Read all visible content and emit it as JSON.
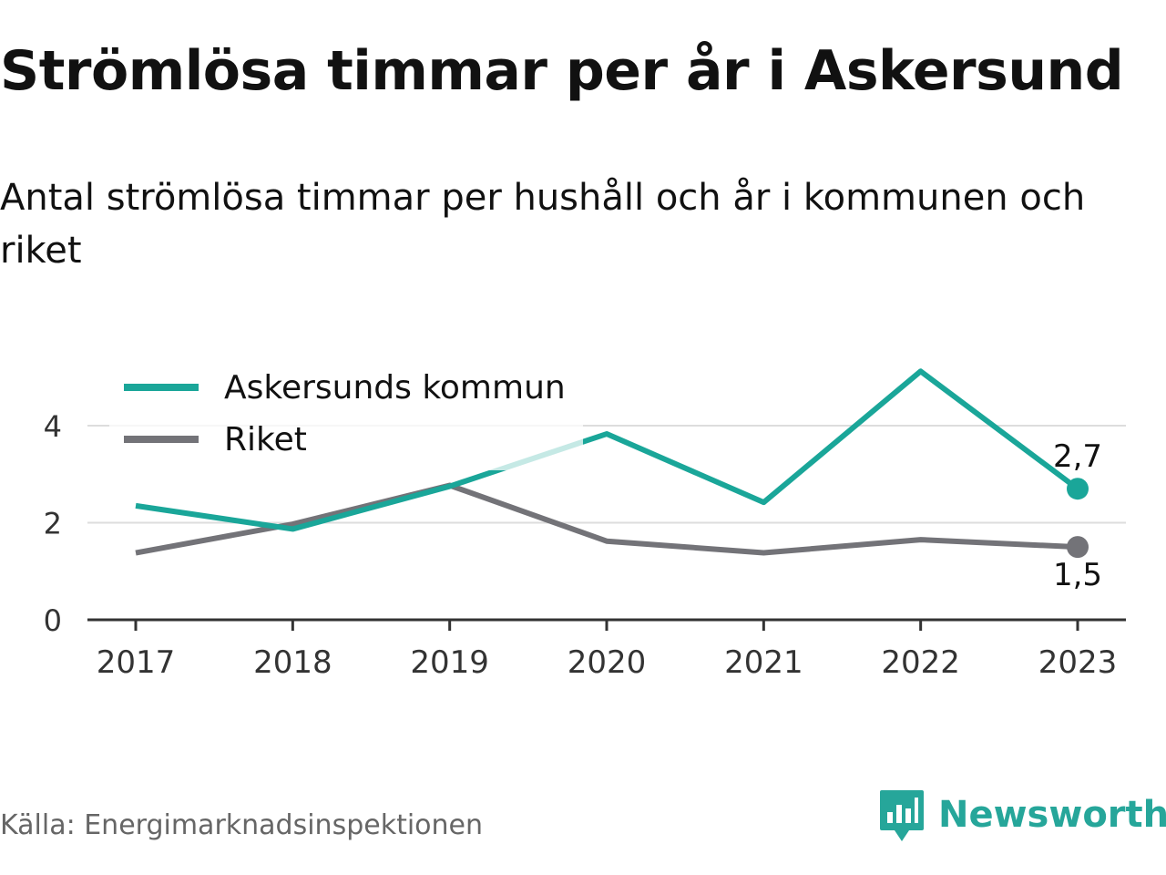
{
  "title": "Strömlösa timmar per år i Askersund",
  "subtitle": "Antal strömlösa timmar per hushåll och år i kommunen och riket",
  "source": "Källa: Energimarknadsinspektionen",
  "brand": {
    "name": "Newsworthy",
    "color": "#26a69a",
    "icon": "newsworthy-chart-logo-icon"
  },
  "chart_data": {
    "type": "line",
    "title": "",
    "xlabel": "",
    "ylabel": "",
    "x": [
      "2017",
      "2018",
      "2019",
      "2020",
      "2021",
      "2022",
      "2023"
    ],
    "y_ticks": [
      0,
      2,
      4
    ],
    "y_tick_labels": [
      "0",
      "2",
      "4"
    ],
    "ylim": [
      0,
      5.2
    ],
    "grid": true,
    "legend_position": "top-left",
    "series": [
      {
        "name": "Askersunds kommun",
        "color": "#1aa699",
        "values": [
          2.35,
          1.87,
          2.75,
          3.83,
          2.42,
          5.12,
          2.7
        ],
        "end_label": "2,7"
      },
      {
        "name": "Riket",
        "color": "#737378",
        "values": [
          1.38,
          1.97,
          2.77,
          1.62,
          1.38,
          1.65,
          1.5
        ],
        "end_label": "1,5"
      }
    ]
  }
}
